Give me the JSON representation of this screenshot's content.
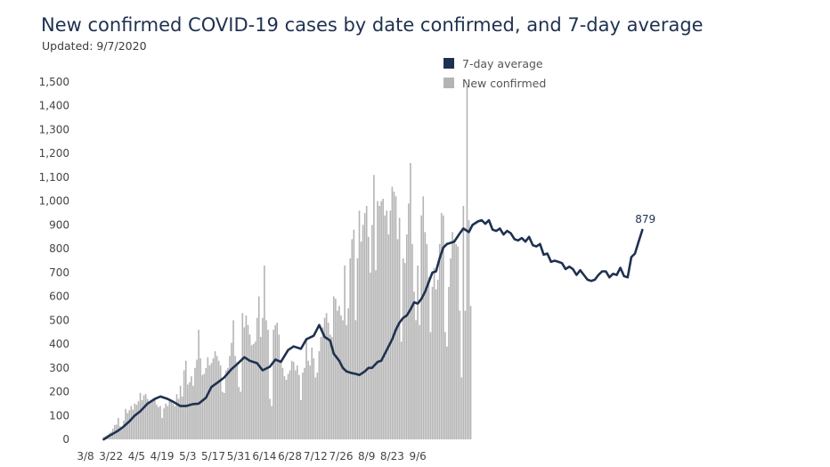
{
  "chart_data": {
    "type": "bar",
    "title": "New confirmed COVID-19 cases by date confirmed, and 7-day average",
    "subtitle": "Updated: 9/7/2020",
    "x_ticks": [
      "3/8",
      "3/22",
      "4/5",
      "4/19",
      "5/3",
      "5/17",
      "5/31",
      "6/14",
      "6/28",
      "7/12",
      "7/26",
      "8/9",
      "8/23",
      "9/6"
    ],
    "y_ticks": [
      "0",
      "100",
      "200",
      "300",
      "400",
      "500",
      "600",
      "700",
      "800",
      "900",
      "1,000",
      "1,100",
      "1,200",
      "1,300",
      "1,400",
      "1,500"
    ],
    "ylim": [
      0,
      1500
    ],
    "x_start": "3/8",
    "x_end": "9/6",
    "legend": {
      "position": "top",
      "entries": [
        "7-day average",
        "New confirmed"
      ]
    },
    "annotation": "879",
    "colors": {
      "average": "#1f3150",
      "bars": "#b4b4b4",
      "text": "#1f3150"
    },
    "series": [
      {
        "name": "New confirmed",
        "kind": "bar",
        "values": [
          10,
          14,
          18,
          26,
          32,
          45,
          60,
          62,
          90,
          55,
          40,
          78,
          128,
          110,
          122,
          140,
          125,
          150,
          145,
          160,
          195,
          165,
          185,
          190,
          170,
          150,
          160,
          170,
          175,
          145,
          135,
          140,
          90,
          130,
          150,
          140,
          160,
          165,
          150,
          140,
          190,
          170,
          225,
          180,
          290,
          330,
          230,
          240,
          265,
          225,
          300,
          335,
          460,
          340,
          270,
          275,
          300,
          345,
          310,
          320,
          340,
          370,
          350,
          330,
          310,
          200,
          195,
          290,
          300,
          350,
          405,
          500,
          350,
          325,
          220,
          200,
          530,
          470,
          520,
          480,
          440,
          395,
          400,
          410,
          510,
          600,
          430,
          510,
          730,
          500,
          460,
          170,
          140,
          460,
          480,
          490,
          440,
          330,
          300,
          265,
          250,
          275,
          290,
          330,
          325,
          290,
          310,
          270,
          165,
          280,
          300,
          420,
          330,
          310,
          385,
          340,
          260,
          280,
          370,
          430,
          470,
          510,
          530,
          490,
          440,
          430,
          600,
          590,
          540,
          560,
          520,
          500,
          730,
          480,
          550,
          760,
          840,
          880,
          500,
          760,
          960,
          830,
          900,
          950,
          980,
          850,
          700,
          900,
          1110,
          710,
          1000,
          980,
          1000,
          1010,
          940,
          960,
          860,
          960,
          1060,
          1040,
          1020,
          840,
          930,
          410,
          760,
          740,
          860,
          990,
          1160,
          820,
          620,
          500,
          730,
          480,
          940,
          1020,
          870,
          820,
          680,
          450,
          640,
          720,
          630,
          670,
          820,
          950,
          940,
          450,
          390,
          640,
          760,
          870,
          840,
          820,
          810,
          540,
          260,
          980,
          540,
          1490,
          920,
          560
        ]
      },
      {
        "name": "7-day average",
        "kind": "line",
        "values": [
          [
            0,
            0
          ],
          [
            3,
            15
          ],
          [
            7,
            32
          ],
          [
            10,
            48
          ],
          [
            14,
            75
          ],
          [
            17,
            100
          ],
          [
            20,
            118
          ],
          [
            24,
            150
          ],
          [
            28,
            170
          ],
          [
            31,
            180
          ],
          [
            35,
            170
          ],
          [
            38,
            158
          ],
          [
            42,
            140
          ],
          [
            45,
            140
          ],
          [
            49,
            148
          ],
          [
            52,
            150
          ],
          [
            56,
            175
          ],
          [
            59,
            220
          ],
          [
            63,
            242
          ],
          [
            66,
            260
          ],
          [
            70,
            295
          ],
          [
            73,
            315
          ],
          [
            77,
            345
          ],
          [
            80,
            330
          ],
          [
            84,
            320
          ],
          [
            87,
            290
          ],
          [
            91,
            305
          ],
          [
            94,
            335
          ],
          [
            97,
            325
          ],
          [
            101,
            375
          ],
          [
            104,
            390
          ],
          [
            108,
            380
          ],
          [
            111,
            420
          ],
          [
            115,
            435
          ],
          [
            118,
            480
          ],
          [
            121,
            430
          ],
          [
            124,
            415
          ],
          [
            126,
            360
          ],
          [
            129,
            330
          ],
          [
            131,
            300
          ],
          [
            133,
            285
          ],
          [
            136,
            278
          ],
          [
            138,
            275
          ],
          [
            140,
            270
          ],
          [
            143,
            285
          ],
          [
            145,
            300
          ],
          [
            147,
            300
          ],
          [
            150,
            325
          ],
          [
            152,
            330
          ],
          [
            155,
            375
          ],
          [
            158,
            420
          ],
          [
            160,
            460
          ],
          [
            162,
            490
          ],
          [
            164,
            510
          ],
          [
            166,
            520
          ],
          [
            168,
            545
          ],
          [
            170,
            575
          ],
          [
            172,
            570
          ],
          [
            174,
            590
          ],
          [
            176,
            620
          ],
          [
            178,
            660
          ],
          [
            180,
            700
          ],
          [
            182,
            705
          ],
          [
            184,
            760
          ],
          [
            186,
            805
          ],
          [
            188,
            820
          ],
          [
            190,
            825
          ],
          [
            192,
            830
          ],
          [
            195,
            865
          ],
          [
            197,
            885
          ],
          [
            200,
            870
          ],
          [
            202,
            900
          ],
          [
            205,
            915
          ],
          [
            207,
            920
          ],
          [
            209,
            905
          ],
          [
            211,
            920
          ],
          [
            213,
            880
          ],
          [
            215,
            875
          ],
          [
            217,
            885
          ],
          [
            219,
            860
          ],
          [
            221,
            875
          ],
          [
            223,
            865
          ],
          [
            225,
            840
          ],
          [
            227,
            835
          ],
          [
            229,
            845
          ],
          [
            231,
            830
          ],
          [
            233,
            850
          ],
          [
            235,
            815
          ],
          [
            237,
            810
          ],
          [
            239,
            820
          ],
          [
            241,
            775
          ],
          [
            243,
            780
          ],
          [
            245,
            745
          ],
          [
            247,
            750
          ],
          [
            249,
            745
          ],
          [
            251,
            740
          ],
          [
            253,
            715
          ],
          [
            255,
            725
          ],
          [
            257,
            715
          ],
          [
            259,
            690
          ],
          [
            261,
            710
          ],
          [
            263,
            690
          ],
          [
            265,
            670
          ],
          [
            267,
            665
          ],
          [
            269,
            670
          ],
          [
            271,
            690
          ],
          [
            273,
            705
          ],
          [
            275,
            705
          ],
          [
            277,
            680
          ],
          [
            279,
            695
          ],
          [
            281,
            690
          ],
          [
            283,
            720
          ],
          [
            285,
            685
          ],
          [
            287,
            680
          ],
          [
            289,
            765
          ],
          [
            291,
            780
          ],
          [
            293,
            830
          ],
          [
            295,
            879
          ]
        ]
      }
    ]
  }
}
